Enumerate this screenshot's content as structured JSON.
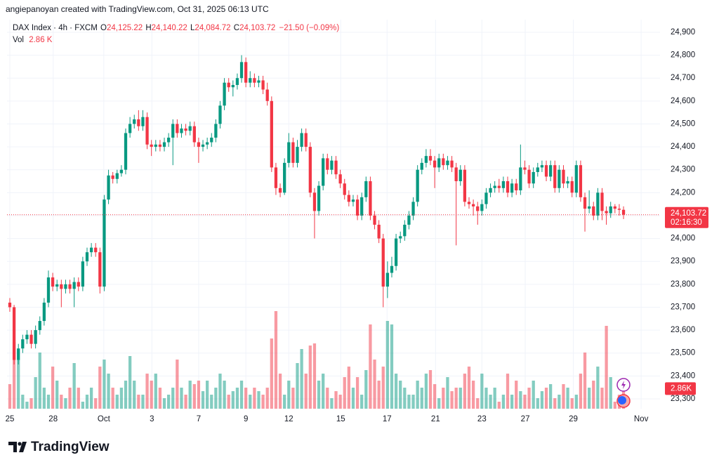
{
  "attribution": "angiepanoyan created with TradingView.com, Oct 31, 2025 06:13 UTC",
  "brand": "TradingView",
  "chart_data": {
    "type": "candlestick",
    "legend": {
      "symbol": "DAX Index · 4h · FXCM",
      "o_label": "O",
      "o": "24,125.22",
      "h_label": "H",
      "h": "24,140.22",
      "l_label": "L",
      "l": "24,084.72",
      "c_label": "C",
      "c": "24,103.72",
      "change": "−21.50 (−0.09%)",
      "vol_label": "Vol",
      "vol": "2.86 K"
    },
    "last_price_label": "24,103.72",
    "countdown": "02:16:30",
    "last_volume_label": "2.86K",
    "up_color": "#089981",
    "down_color": "#f23645",
    "xlim": [
      -0.65,
      151.5
    ],
    "xticks": [
      {
        "value": 0,
        "label": "25"
      },
      {
        "value": 10.1,
        "label": "28"
      },
      {
        "value": 21.9,
        "label": "Oct"
      },
      {
        "value": 33.1,
        "label": "3"
      },
      {
        "value": 44,
        "label": "7"
      },
      {
        "value": 55,
        "label": "9"
      },
      {
        "value": 65,
        "label": "12"
      },
      {
        "value": 77.1,
        "label": "15"
      },
      {
        "value": 87.9,
        "label": "17"
      },
      {
        "value": 99.2,
        "label": "21"
      },
      {
        "value": 110,
        "label": "23"
      },
      {
        "value": 120.1,
        "label": "27"
      },
      {
        "value": 131.3,
        "label": "29"
      },
      {
        "value": 147.1,
        "label": "Nov"
      }
    ],
    "ylim": [
      23257,
      24955
    ],
    "yticks": [
      {
        "value": 23300,
        "label": "23,300"
      },
      {
        "value": 23400,
        "label": "23,400"
      },
      {
        "value": 23500,
        "label": "23,500"
      },
      {
        "value": 23600,
        "label": "23,600"
      },
      {
        "value": 23700,
        "label": "23,700"
      },
      {
        "value": 23800,
        "label": "23,800"
      },
      {
        "value": 23900,
        "label": "23,900"
      },
      {
        "value": 24000,
        "label": "24,000"
      },
      {
        "value": 24100,
        "label": "24,100"
      },
      {
        "value": 24200,
        "label": "24,200"
      },
      {
        "value": 24300,
        "label": "24,300"
      },
      {
        "value": 24400,
        "label": "24,400"
      },
      {
        "value": 24500,
        "label": "24,500"
      },
      {
        "value": 24600,
        "label": "24,600"
      },
      {
        "value": 24700,
        "label": "24,700"
      },
      {
        "value": 24800,
        "label": "24,800"
      },
      {
        "value": 24900,
        "label": "24,900"
      }
    ],
    "volume_lim": [
      0,
      16
    ],
    "grid": true,
    "open": [
      23720,
      23700,
      23470,
      23520,
      23560,
      23580,
      23540,
      23600,
      23640,
      23720,
      23830,
      23790,
      23800,
      23780,
      23800,
      23780,
      23810,
      23790,
      23900,
      23940,
      23960,
      23940,
      23790,
      24170,
      24275,
      24260,
      24285,
      24300,
      24460,
      24500,
      24520,
      24490,
      24530,
      24410,
      24400,
      24410,
      24400,
      24420,
      24440,
      24500,
      24460,
      24480,
      24470,
      24490,
      24420,
      24400,
      24410,
      24420,
      24440,
      24500,
      24580,
      24680,
      24660,
      24670,
      24700,
      24770,
      24680,
      24700,
      24680,
      24690,
      24650,
      24600,
      24310,
      24220,
      24200,
      24330,
      24420,
      24330,
      24400,
      24460,
      24400,
      24200,
      24120,
      24230,
      24350,
      24300,
      24340,
      24280,
      24240,
      24190,
      24160,
      24170,
      24100,
      24180,
      24250,
      24100,
      24060,
      24000,
      23790,
      23850,
      23880,
      24000,
      24010,
      24060,
      24100,
      24160,
      24300,
      24330,
      24360,
      24340,
      24310,
      24350,
      24320,
      24340,
      24310,
      24250,
      24300,
      24160,
      24150,
      24140,
      24120,
      24150,
      24200,
      24220,
      24230,
      24220,
      24250,
      24200,
      24240,
      24210,
      24310,
      24300,
      24240,
      24290,
      24310,
      24320,
      24270,
      24320,
      24220,
      24300,
      24240,
      24250,
      24200,
      24320,
      24180,
      24130,
      24140,
      24100,
      24200,
      24120,
      24110,
      24140,
      24130,
      24125.22
    ],
    "high": [
      23740,
      23710,
      23540,
      23580,
      23600,
      23600,
      23620,
      23660,
      23740,
      23860,
      23850,
      23820,
      23820,
      23820,
      23820,
      23830,
      23830,
      23920,
      23960,
      23980,
      23980,
      23960,
      24190,
      24300,
      24290,
      24300,
      24320,
      24480,
      24530,
      24540,
      24560,
      24560,
      24550,
      24430,
      24430,
      24430,
      24440,
      24460,
      24520,
      24520,
      24500,
      24500,
      24510,
      24510,
      24440,
      24430,
      24440,
      24460,
      24520,
      24600,
      24700,
      24700,
      24690,
      24720,
      24800,
      24790,
      24730,
      24720,
      24710,
      24710,
      24680,
      24620,
      24330,
      24240,
      24350,
      24460,
      24440,
      24430,
      24480,
      24480,
      24420,
      24220,
      24250,
      24370,
      24370,
      24360,
      24360,
      24300,
      24260,
      24210,
      24190,
      24190,
      24200,
      24270,
      24270,
      24120,
      24080,
      24020,
      23900,
      23920,
      24020,
      24030,
      24080,
      24120,
      24180,
      24320,
      24350,
      24390,
      24390,
      24360,
      24370,
      24370,
      24360,
      24360,
      24330,
      24320,
      24320,
      24180,
      24170,
      24160,
      24170,
      24220,
      24240,
      24250,
      24260,
      24270,
      24270,
      24260,
      24260,
      24410,
      24340,
      24320,
      24310,
      24330,
      24340,
      24340,
      24340,
      24340,
      24320,
      24320,
      24270,
      24270,
      24340,
      24340,
      24200,
      24210,
      24160,
      24220,
      24220,
      24140,
      24160,
      24150,
      24150,
      24140.22
    ],
    "low": [
      23680,
      23450,
      23450,
      23500,
      23540,
      23520,
      23520,
      23580,
      23620,
      23700,
      23770,
      23770,
      23700,
      23760,
      23760,
      23700,
      23770,
      23770,
      23880,
      23920,
      23920,
      23760,
      23770,
      24150,
      24240,
      24240,
      24270,
      24280,
      24440,
      24480,
      24470,
      24470,
      24390,
      24360,
      24380,
      24380,
      24380,
      24400,
      24320,
      24440,
      24440,
      24450,
      24450,
      24400,
      24330,
      24380,
      24390,
      24400,
      24420,
      24480,
      24560,
      24640,
      24620,
      24650,
      24680,
      24660,
      24660,
      24660,
      24660,
      24630,
      24580,
      24290,
      24190,
      24180,
      24190,
      24310,
      24310,
      24310,
      24380,
      24380,
      24180,
      24000,
      24100,
      24210,
      24280,
      24280,
      24260,
      24220,
      24170,
      24140,
      24140,
      24080,
      24080,
      24160,
      24080,
      24040,
      23980,
      23700,
      23740,
      23830,
      23860,
      23980,
      23990,
      24040,
      24080,
      24140,
      24280,
      24310,
      24320,
      24220,
      24290,
      24300,
      24300,
      24290,
      23970,
      24230,
      24140,
      24130,
      24100,
      24060,
      24100,
      24130,
      24180,
      24200,
      24200,
      24200,
      24180,
      24180,
      24190,
      24190,
      24280,
      24220,
      24220,
      24270,
      24290,
      24250,
      24250,
      24200,
      24200,
      24220,
      24220,
      24180,
      24180,
      24160,
      24030,
      24110,
      24080,
      24080,
      24080,
      24060,
      24090,
      24110,
      24100,
      24084.72
    ],
    "close": [
      23700,
      23470,
      23520,
      23560,
      23580,
      23540,
      23600,
      23640,
      23720,
      23830,
      23790,
      23800,
      23780,
      23800,
      23780,
      23810,
      23790,
      23900,
      23940,
      23960,
      23940,
      23790,
      24170,
      24275,
      24260,
      24285,
      24300,
      24460,
      24500,
      24520,
      24490,
      24530,
      24410,
      24400,
      24410,
      24400,
      24420,
      24440,
      24500,
      24460,
      24480,
      24470,
      24490,
      24420,
      24400,
      24410,
      24420,
      24440,
      24500,
      24580,
      24680,
      24660,
      24670,
      24700,
      24770,
      24680,
      24700,
      24680,
      24690,
      24650,
      24600,
      24310,
      24220,
      24200,
      24330,
      24420,
      24330,
      24400,
      24460,
      24400,
      24200,
      24120,
      24230,
      24350,
      24300,
      24340,
      24280,
      24240,
      24190,
      24160,
      24170,
      24100,
      24180,
      24250,
      24100,
      24060,
      24000,
      23790,
      23850,
      23880,
      24000,
      24010,
      24060,
      24100,
      24160,
      24300,
      24330,
      24360,
      24340,
      24310,
      24350,
      24320,
      24340,
      24310,
      24250,
      24300,
      24160,
      24150,
      24140,
      24120,
      24150,
      24200,
      24220,
      24230,
      24220,
      24250,
      24200,
      24240,
      24210,
      24310,
      24300,
      24240,
      24290,
      24310,
      24320,
      24270,
      24320,
      24220,
      24300,
      24240,
      24250,
      24200,
      24320,
      24180,
      24130,
      24140,
      24100,
      24200,
      24120,
      24110,
      24140,
      24130,
      24125.22,
      24103.72
    ],
    "volume": [
      3.5,
      9.5,
      7,
      2,
      1,
      1.5,
      4.5,
      8,
      3,
      2,
      6,
      4,
      2,
      1.5,
      3,
      6.5,
      3,
      1,
      2,
      3,
      1.5,
      6,
      7,
      5,
      3,
      2,
      3,
      4,
      7.5,
      4,
      2,
      2,
      5,
      4,
      5,
      3,
      1.5,
      2,
      3,
      7,
      3,
      2,
      4,
      3.5,
      4,
      2.5,
      4,
      2,
      3,
      5,
      4,
      2,
      2.5,
      3,
      4,
      3,
      2,
      3,
      2.5,
      2,
      3,
      10,
      13.9,
      5,
      2,
      4,
      3,
      6.5,
      8.5,
      5,
      9,
      9.3,
      4,
      5,
      3,
      1.5,
      2.5,
      2,
      4.5,
      6,
      3,
      4.5,
      2,
      5.5,
      12,
      7,
      4,
      6,
      12.5,
      12,
      5,
      4,
      3,
      2,
      2,
      4,
      3,
      5,
      5.5,
      3.5,
      1.5,
      3,
      4.5,
      2.5,
      3,
      3,
      5,
      6,
      4,
      1.5,
      5,
      3,
      2,
      3,
      1,
      2,
      5,
      2,
      4,
      2.5,
      2,
      3,
      4,
      1.5,
      2.5,
      3,
      3.5,
      1.5,
      2,
      3.5,
      3,
      1.5,
      2,
      5,
      8,
      3,
      4,
      6,
      3,
      11.8,
      4.5,
      1,
      2,
      2.86
    ]
  }
}
